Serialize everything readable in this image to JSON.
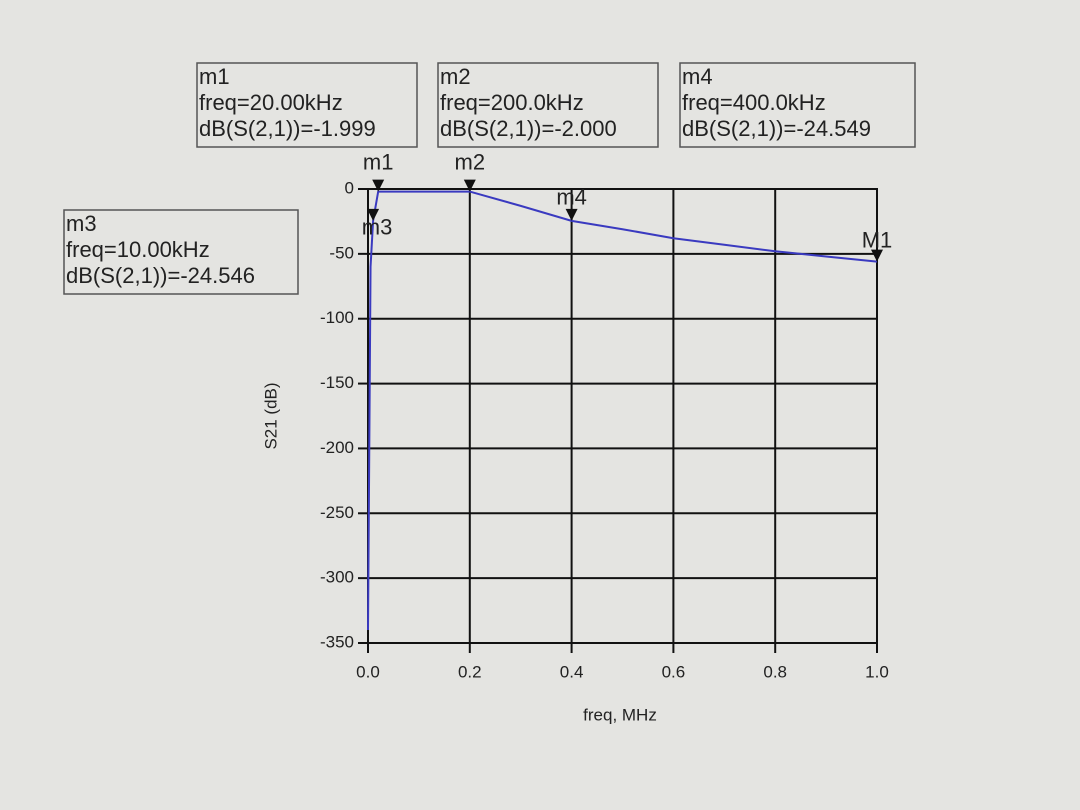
{
  "chart_data": {
    "type": "line",
    "x_label": "freq, MHz",
    "y_label": "S21 (dB)",
    "xlim": [
      0,
      1
    ],
    "ylim": [
      -350,
      0
    ],
    "xticks": [
      {
        "value": 0,
        "label": "0.0"
      },
      {
        "value": 0.2,
        "label": "0.2"
      },
      {
        "value": 0.4,
        "label": "0.4"
      },
      {
        "value": 0.6,
        "label": "0.6"
      },
      {
        "value": 0.8,
        "label": "0.8"
      },
      {
        "value": 1,
        "label": "1.0"
      }
    ],
    "yticks": [
      0,
      -50,
      -100,
      -150,
      -200,
      -250,
      -300,
      -350
    ],
    "grid": true,
    "x": [
      0,
      0.005,
      0.01,
      0.02,
      0.1,
      0.2,
      0.3,
      0.4,
      0.5,
      0.6,
      0.7,
      0.8,
      0.9,
      1
    ],
    "series": [
      {
        "color": "#3a3ac0",
        "values": [
          -340,
          -60,
          -24.546,
          -1.999,
          -2,
          -2.0,
          -13,
          -24.549,
          -31,
          -38,
          -43,
          -48,
          -52,
          -56
        ]
      }
    ],
    "markers": [
      {
        "name": "m1",
        "x": 0.02,
        "y": -1.999,
        "freq_text": "freq=20.00kHz",
        "value_text": "dB(S(2,1))=-1.999"
      },
      {
        "name": "m2",
        "x": 0.2,
        "y": -2.0,
        "freq_text": "freq=200.0kHz",
        "value_text": "dB(S(2,1))=-2.000"
      },
      {
        "name": "m3",
        "x": 0.01,
        "y": -24.546,
        "freq_text": "freq=10.00kHz",
        "value_text": "dB(S(2,1))=-24.546"
      },
      {
        "name": "m4",
        "x": 0.4,
        "y": -24.549,
        "freq_text": "freq=400.0kHz",
        "value_text": "dB(S(2,1))=-24.549"
      },
      {
        "name": "M1",
        "x": 1,
        "y": -56
      }
    ]
  }
}
